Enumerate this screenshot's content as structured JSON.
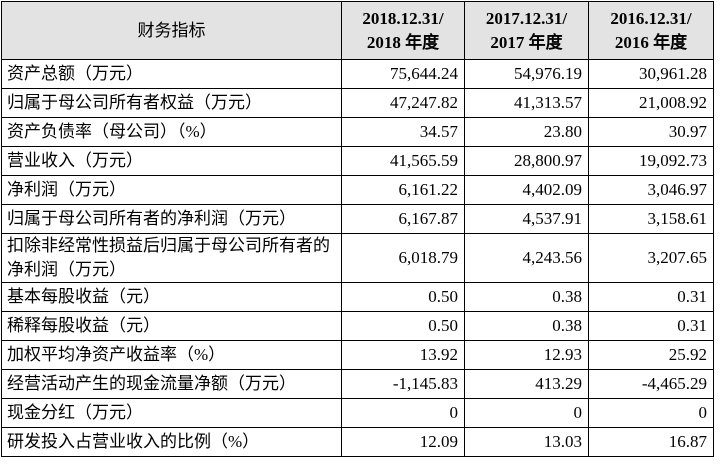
{
  "table": {
    "header": [
      "财务指标",
      [
        "2018.12.31/",
        "2018 年度"
      ],
      [
        "2017.12.31/",
        "2017 年度"
      ],
      [
        "2016.12.31/",
        "2016 年度"
      ]
    ],
    "rows": [
      [
        "资产总额（万元）",
        "75,644.24",
        "54,976.19",
        "30,961.28"
      ],
      [
        "归属于母公司所有者权益（万元）",
        "47,247.82",
        "41,313.57",
        "21,008.92"
      ],
      [
        "资产负债率（母公司）（%）",
        "34.57",
        "23.80",
        "30.97"
      ],
      [
        "营业收入（万元）",
        "41,565.59",
        "28,800.97",
        "19,092.73"
      ],
      [
        "净利润（万元）",
        "6,161.22",
        "4,402.09",
        "3,046.97"
      ],
      [
        "归属于母公司所有者的净利润（万元）",
        "6,167.87",
        "4,537.91",
        "3,158.61"
      ],
      [
        "扣除非经常性损益后归属于母公司所有者的净利润（万元）",
        "6,018.79",
        "4,243.56",
        "3,207.65"
      ],
      [
        "基本每股收益（元）",
        "0.50",
        "0.38",
        "0.31"
      ],
      [
        "稀释每股收益（元）",
        "0.50",
        "0.38",
        "0.31"
      ],
      [
        "加权平均净资产收益率（%）",
        "13.92",
        "12.93",
        "25.92"
      ],
      [
        "经营活动产生的现金流量净额（万元）",
        "-1,145.83",
        "413.29",
        "-4,465.29"
      ],
      [
        "现金分红（万元）",
        "0",
        "0",
        "0"
      ],
      [
        "研发投入占营业收入的比例（%）",
        "12.09",
        "13.03",
        "16.87"
      ]
    ]
  }
}
